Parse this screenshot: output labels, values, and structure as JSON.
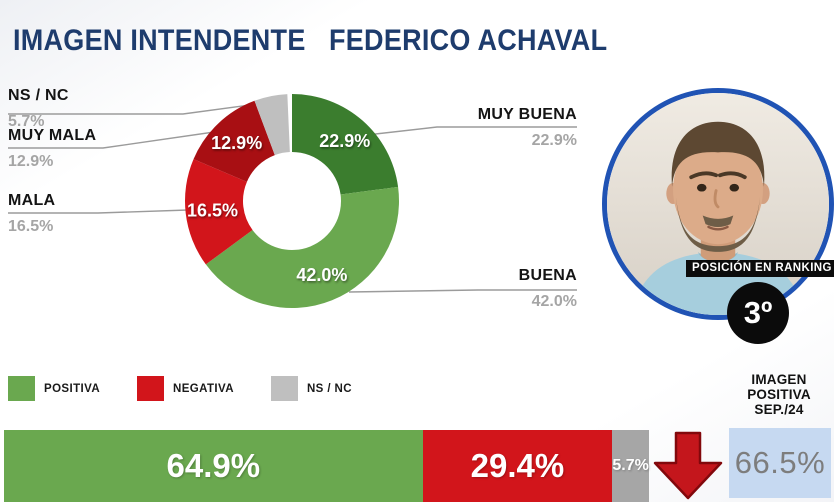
{
  "header": {
    "title_left": "IMAGEN INTENDENTE",
    "title_right": "FEDERICO ACHAVAL"
  },
  "chart_data": {
    "type": "pie",
    "title": "IMAGEN INTENDENTE FEDERICO ACHAVAL",
    "donut": {
      "slices": [
        {
          "label": "MUY BUENA",
          "value": 22.9,
          "pct_label": "22.9%",
          "color": "#3b7d2e",
          "group": "POSITIVA",
          "label_on_slice": true
        },
        {
          "label": "BUENA",
          "value": 42.0,
          "pct_label": "42.0%",
          "color": "#6aa84f",
          "group": "POSITIVA",
          "label_on_slice": true
        },
        {
          "label": "MALA",
          "value": 16.5,
          "pct_label": "16.5%",
          "color": "#d2151b",
          "group": "NEGATIVA",
          "label_on_slice": true
        },
        {
          "label": "MUY MALA",
          "value": 12.9,
          "pct_label": "12.9%",
          "color": "#a80f13",
          "group": "NEGATIVA",
          "label_on_slice": true
        },
        {
          "label": "NS / NC",
          "value": 5.7,
          "pct_label": "5.7%",
          "color": "#bfbfbf",
          "group": "NS / NC",
          "label_on_slice": false
        }
      ]
    },
    "legend": {
      "position": "bottom-left",
      "items": [
        {
          "label": "POSITIVA",
          "color": "#6aa84f"
        },
        {
          "label": "NEGATIVA",
          "color": "#d2151b"
        },
        {
          "label": "NS / NC",
          "color": "#bfbfbf"
        }
      ]
    },
    "summary_bar": {
      "segments": [
        {
          "label": "POSITIVA",
          "value": 64.9,
          "pct_label": "64.9%",
          "color": "#6aa84f",
          "text_size": "large"
        },
        {
          "label": "NEGATIVA",
          "value": 29.4,
          "pct_label": "29.4%",
          "color": "#d2151b",
          "text_size": "large"
        },
        {
          "label": "NS / NC",
          "value": 5.7,
          "pct_label": "5.7%",
          "color": "#a6a6a6",
          "text_size": "small"
        }
      ]
    }
  },
  "ranking": {
    "label": "POSICIÓN EN RANKING",
    "value": "3º"
  },
  "previous": {
    "line1": "IMAGEN",
    "line2": "POSITIVA",
    "line3": "SEP./24",
    "value": "66.5%"
  },
  "trend": {
    "direction": "down",
    "color": "#c4161c",
    "border": "#82080c"
  },
  "colors": {
    "title": "#1e3c6d",
    "photo_ring": "#2053b4",
    "prev_box_bg": "#c6d9f1",
    "prev_box_text": "#7d7d7d",
    "leader_line": "#9b9b9b"
  }
}
